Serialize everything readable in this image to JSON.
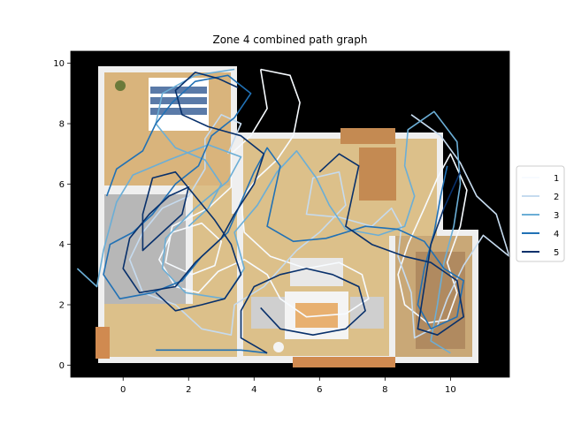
{
  "chart_data": {
    "type": "line",
    "title": "Zone 4 combined path graph",
    "xlabel": "",
    "ylabel": "",
    "xlim": [
      -1.6,
      11.8
    ],
    "ylim": [
      -0.4,
      10.4
    ],
    "xticks": [
      0,
      2,
      4,
      6,
      8,
      10
    ],
    "yticks": [
      0,
      2,
      4,
      6,
      8,
      10
    ],
    "grid": false,
    "legend_position": "right",
    "background_image": "top-down floor plan of apartment (bedroom, living room, dining table) on black background",
    "series": [
      {
        "name": "1",
        "color": "#f7fbff",
        "points": [
          [
            4.2,
            9.8
          ],
          [
            5.1,
            9.6
          ],
          [
            5.4,
            8.7
          ],
          [
            5.2,
            7.6
          ],
          [
            4.7,
            6.8
          ],
          [
            4.1,
            6.2
          ],
          [
            3.6,
            5.5
          ],
          [
            3.7,
            4.4
          ],
          [
            4.5,
            3.6
          ],
          [
            5.6,
            3.2
          ],
          [
            6.6,
            3.4
          ],
          [
            7.3,
            3.0
          ],
          [
            7.5,
            2.2
          ],
          [
            6.8,
            1.7
          ],
          [
            5.6,
            1.6
          ],
          [
            4.8,
            2.2
          ],
          [
            4.4,
            3.0
          ],
          [
            3.7,
            3.5
          ],
          [
            2.9,
            3.1
          ],
          [
            2.3,
            2.4
          ],
          [
            1.6,
            2.6
          ],
          [
            1.1,
            3.5
          ],
          [
            1.5,
            4.4
          ],
          [
            2.4,
            4.7
          ],
          [
            3.0,
            4.1
          ],
          [
            2.8,
            3.3
          ],
          [
            2.1,
            3.0
          ],
          [
            1.3,
            3.4
          ],
          [
            1.5,
            4.6
          ],
          [
            2.6,
            5.2
          ],
          [
            3.3,
            5.9
          ],
          [
            3.3,
            7.0
          ],
          [
            3.9,
            7.6
          ],
          [
            4.4,
            8.5
          ],
          [
            4.2,
            9.8
          ]
        ]
      },
      {
        "name": "1",
        "color": "#f7fbff",
        "points": [
          [
            8.7,
            4.0
          ],
          [
            8.4,
            3.0
          ],
          [
            8.6,
            2.0
          ],
          [
            9.3,
            1.4
          ],
          [
            9.9,
            1.5
          ],
          [
            10.2,
            2.4
          ],
          [
            9.9,
            3.4
          ],
          [
            10.3,
            4.6
          ],
          [
            10.5,
            5.8
          ],
          [
            10.0,
            7.0
          ],
          [
            9.6,
            6.2
          ],
          [
            9.2,
            5.2
          ],
          [
            8.7,
            4.0
          ]
        ]
      },
      {
        "name": "2",
        "color": "#c6dbef",
        "points": [
          [
            8.8,
            8.3
          ],
          [
            9.7,
            7.6
          ],
          [
            10.3,
            6.7
          ],
          [
            10.8,
            5.6
          ],
          [
            11.4,
            5.0
          ],
          [
            11.8,
            3.6
          ],
          [
            11.0,
            4.3
          ],
          [
            10.4,
            3.3
          ],
          [
            9.9,
            2.2
          ],
          [
            9.6,
            1.3
          ],
          [
            8.9,
            0.9
          ],
          [
            8.8,
            2.4
          ],
          [
            8.4,
            3.6
          ],
          [
            8.5,
            4.6
          ],
          [
            8.2,
            5.2
          ],
          [
            7.6,
            4.6
          ],
          [
            6.6,
            4.9
          ],
          [
            5.6,
            5.0
          ],
          [
            5.8,
            6.2
          ],
          [
            6.6,
            6.4
          ],
          [
            6.8,
            5.3
          ],
          [
            6.0,
            4.4
          ],
          [
            5.3,
            3.8
          ],
          [
            4.8,
            3.2
          ],
          [
            4.3,
            2.6
          ],
          [
            3.4,
            2.0
          ],
          [
            3.3,
            1.0
          ],
          [
            2.4,
            1.2
          ],
          [
            1.6,
            2.0
          ],
          [
            0.6,
            2.4
          ],
          [
            0.2,
            3.5
          ],
          [
            0.6,
            4.4
          ],
          [
            1.2,
            5.2
          ],
          [
            2.0,
            5.6
          ],
          [
            2.5,
            6.5
          ],
          [
            2.5,
            7.5
          ],
          [
            3.0,
            8.3
          ],
          [
            3.6,
            8.0
          ],
          [
            3.2,
            7.0
          ]
        ]
      },
      {
        "name": "3",
        "color": "#6baed6",
        "points": [
          [
            -1.4,
            3.2
          ],
          [
            -0.8,
            2.6
          ],
          [
            -0.6,
            3.8
          ],
          [
            -0.2,
            5.4
          ],
          [
            0.3,
            6.3
          ],
          [
            1.4,
            6.8
          ],
          [
            2.6,
            7.3
          ],
          [
            3.6,
            6.9
          ],
          [
            3.2,
            6.1
          ],
          [
            2.2,
            5.2
          ],
          [
            1.3,
            4.2
          ],
          [
            1.2,
            3.2
          ],
          [
            1.9,
            2.4
          ],
          [
            3.1,
            2.2
          ],
          [
            3.7,
            3.2
          ],
          [
            3.4,
            4.4
          ],
          [
            4.1,
            5.3
          ],
          [
            4.7,
            6.4
          ],
          [
            5.3,
            7.1
          ],
          [
            5.9,
            6.2
          ],
          [
            6.3,
            5.3
          ],
          [
            6.8,
            4.5
          ],
          [
            7.8,
            4.3
          ],
          [
            8.6,
            4.6
          ],
          [
            8.9,
            5.6
          ],
          [
            8.6,
            6.6
          ],
          [
            8.7,
            7.8
          ],
          [
            9.5,
            8.4
          ],
          [
            10.2,
            7.4
          ],
          [
            10.3,
            6.0
          ],
          [
            10.1,
            4.6
          ],
          [
            9.8,
            3.4
          ],
          [
            9.6,
            2.0
          ],
          [
            9.4,
            0.8
          ],
          [
            10.0,
            0.4
          ]
        ]
      },
      {
        "name": "3",
        "color": "#6baed6",
        "points": [
          [
            3.4,
            9.8
          ],
          [
            2.2,
            9.6
          ],
          [
            1.2,
            9.0
          ],
          [
            1.0,
            8.0
          ],
          [
            1.6,
            7.2
          ],
          [
            2.5,
            6.8
          ],
          [
            3.0,
            6.0
          ],
          [
            2.6,
            5.2
          ],
          [
            2.0,
            4.6
          ]
        ]
      },
      {
        "name": "4",
        "color": "#2171b5",
        "points": [
          [
            -0.5,
            5.6
          ],
          [
            -0.2,
            6.5
          ],
          [
            0.6,
            7.1
          ],
          [
            1.0,
            8.0
          ],
          [
            1.5,
            8.7
          ],
          [
            2.2,
            9.4
          ],
          [
            3.2,
            9.6
          ],
          [
            3.9,
            9.0
          ],
          [
            3.4,
            8.2
          ],
          [
            2.7,
            7.6
          ],
          [
            2.3,
            6.6
          ],
          [
            1.6,
            6.0
          ],
          [
            0.9,
            5.0
          ],
          [
            0.3,
            4.4
          ],
          [
            -0.4,
            4.0
          ],
          [
            -0.6,
            3.0
          ],
          [
            -0.1,
            2.2
          ],
          [
            0.9,
            2.4
          ],
          [
            1.8,
            2.8
          ],
          [
            2.4,
            3.6
          ],
          [
            3.2,
            4.4
          ],
          [
            3.6,
            5.4
          ],
          [
            4.0,
            6.4
          ],
          [
            4.4,
            7.2
          ],
          [
            4.8,
            6.6
          ],
          [
            4.6,
            5.6
          ],
          [
            4.4,
            4.6
          ],
          [
            5.2,
            4.1
          ],
          [
            6.2,
            4.2
          ],
          [
            7.4,
            4.6
          ],
          [
            8.4,
            4.5
          ],
          [
            9.2,
            4.1
          ],
          [
            9.8,
            3.2
          ],
          [
            10.4,
            2.8
          ],
          [
            10.2,
            1.6
          ],
          [
            9.4,
            1.2
          ],
          [
            9.0,
            2.0
          ],
          [
            9.2,
            3.2
          ],
          [
            9.5,
            4.4
          ],
          [
            9.7,
            5.6
          ],
          [
            9.9,
            6.6
          ]
        ]
      },
      {
        "name": "4",
        "color": "#2171b5",
        "points": [
          [
            1.0,
            0.5
          ],
          [
            2.4,
            0.5
          ],
          [
            3.6,
            0.5
          ],
          [
            4.4,
            0.4
          ]
        ]
      },
      {
        "name": "5",
        "color": "#08306b",
        "points": [
          [
            3.5,
            9.2
          ],
          [
            2.9,
            9.5
          ],
          [
            2.2,
            9.7
          ],
          [
            1.6,
            9.1
          ],
          [
            1.8,
            8.3
          ],
          [
            2.6,
            7.9
          ],
          [
            3.6,
            7.6
          ],
          [
            4.3,
            7.0
          ],
          [
            4.0,
            6.0
          ],
          [
            3.4,
            5.0
          ],
          [
            3.0,
            4.2
          ],
          [
            2.2,
            3.4
          ],
          [
            1.6,
            2.6
          ],
          [
            0.5,
            2.4
          ],
          [
            0.0,
            3.2
          ],
          [
            0.2,
            4.2
          ],
          [
            0.8,
            5.0
          ],
          [
            1.4,
            5.6
          ],
          [
            2.0,
            5.9
          ],
          [
            1.8,
            5.0
          ],
          [
            1.2,
            4.4
          ],
          [
            0.6,
            3.8
          ],
          [
            0.6,
            5.0
          ],
          [
            0.9,
            6.2
          ],
          [
            1.6,
            6.4
          ],
          [
            2.2,
            5.6
          ],
          [
            2.8,
            4.8
          ],
          [
            3.3,
            4.0
          ],
          [
            3.6,
            3.0
          ],
          [
            3.1,
            2.2
          ],
          [
            2.4,
            2.0
          ],
          [
            1.6,
            1.8
          ],
          [
            1.0,
            2.4
          ]
        ]
      },
      {
        "name": "5",
        "color": "#08306b",
        "points": [
          [
            4.4,
            0.4
          ],
          [
            3.6,
            0.9
          ],
          [
            3.6,
            1.8
          ],
          [
            4.0,
            2.6
          ],
          [
            4.8,
            3.0
          ],
          [
            5.6,
            3.2
          ],
          [
            6.4,
            3.0
          ],
          [
            7.2,
            2.6
          ],
          [
            7.4,
            1.8
          ],
          [
            6.8,
            1.2
          ],
          [
            5.8,
            1.0
          ],
          [
            4.8,
            1.2
          ],
          [
            4.2,
            1.9
          ]
        ]
      },
      {
        "name": "5",
        "color": "#08306b",
        "points": [
          [
            6.0,
            6.4
          ],
          [
            6.6,
            7.0
          ],
          [
            7.2,
            6.6
          ],
          [
            7.0,
            5.6
          ],
          [
            6.8,
            4.6
          ],
          [
            7.6,
            4.0
          ],
          [
            8.6,
            3.6
          ],
          [
            9.4,
            3.4
          ],
          [
            10.2,
            2.8
          ],
          [
            10.4,
            1.6
          ],
          [
            9.6,
            1.0
          ],
          [
            9.0,
            1.2
          ],
          [
            9.2,
            2.6
          ],
          [
            9.4,
            4.0
          ],
          [
            9.8,
            5.2
          ],
          [
            10.3,
            6.4
          ]
        ]
      }
    ],
    "legend": [
      {
        "label": "1",
        "color": "#f7fbff"
      },
      {
        "label": "2",
        "color": "#c6dbef"
      },
      {
        "label": "3",
        "color": "#6baed6"
      },
      {
        "label": "4",
        "color": "#2171b5"
      },
      {
        "label": "5",
        "color": "#08306b"
      }
    ]
  }
}
